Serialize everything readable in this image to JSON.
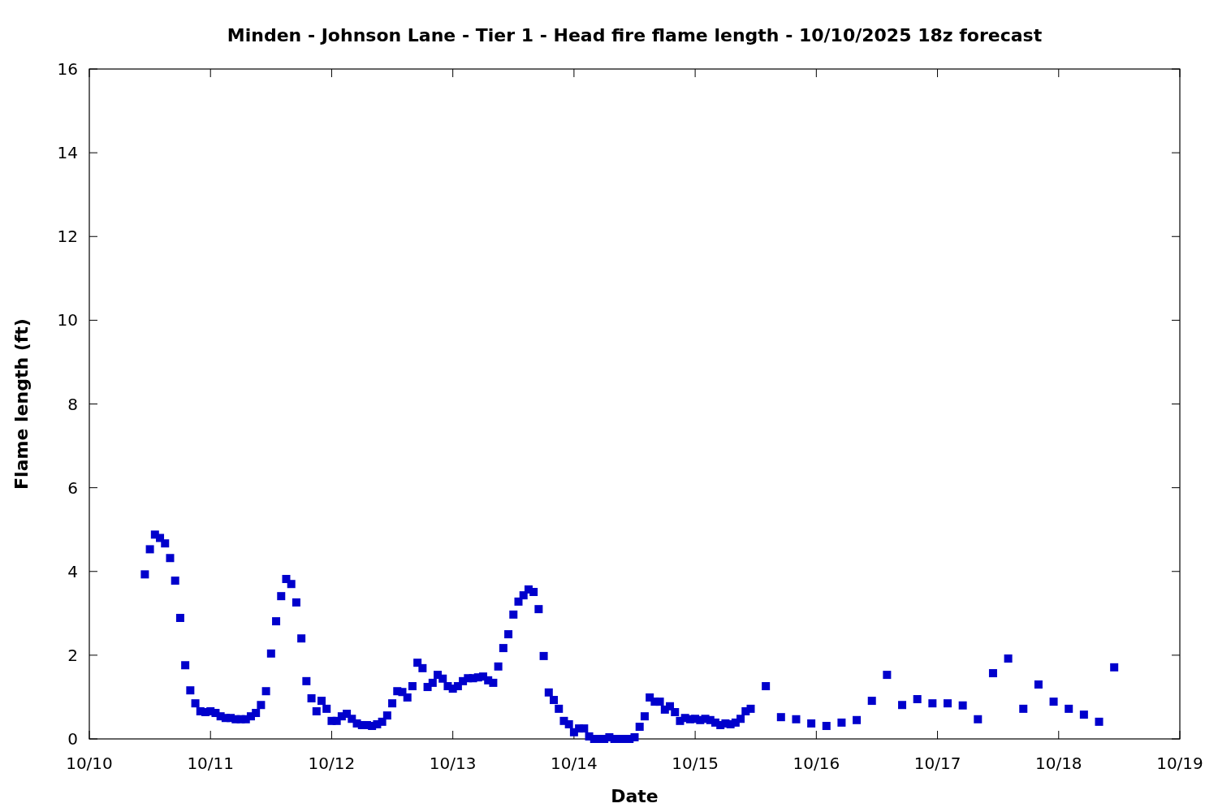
{
  "chart_data": {
    "type": "scatter",
    "title": "Minden - Johnson Lane - Tier 1 - Head fire flame length - 10/10/2025 18z forecast",
    "xlabel": "Date",
    "ylabel": "Flame length (ft)",
    "marker": "square",
    "grid": false,
    "xlim": [
      "2025-10-10",
      "2025-10-19"
    ],
    "xticks": [
      {
        "value": "2025-10-10",
        "label": "10/10"
      },
      {
        "value": "2025-10-11",
        "label": "10/11"
      },
      {
        "value": "2025-10-12",
        "label": "10/12"
      },
      {
        "value": "2025-10-13",
        "label": "10/13"
      },
      {
        "value": "2025-10-14",
        "label": "10/14"
      },
      {
        "value": "2025-10-15",
        "label": "10/15"
      },
      {
        "value": "2025-10-16",
        "label": "10/16"
      },
      {
        "value": "2025-10-17",
        "label": "10/17"
      },
      {
        "value": "2025-10-18",
        "label": "10/18"
      },
      {
        "value": "2025-10-19",
        "label": "10/19"
      }
    ],
    "ylim": [
      0,
      16
    ],
    "yticks": [
      0,
      2,
      4,
      6,
      8,
      10,
      12,
      14,
      16
    ],
    "series": [
      {
        "color": "#0000cc",
        "x": [
          "2025-10-10T11:00",
          "2025-10-10T12:00",
          "2025-10-10T13:00",
          "2025-10-10T14:00",
          "2025-10-10T15:00",
          "2025-10-10T16:00",
          "2025-10-10T17:00",
          "2025-10-10T18:00",
          "2025-10-10T19:00",
          "2025-10-10T20:00",
          "2025-10-10T21:00",
          "2025-10-10T22:00",
          "2025-10-10T23:00",
          "2025-10-11T00:00",
          "2025-10-11T01:00",
          "2025-10-11T02:00",
          "2025-10-11T03:00",
          "2025-10-11T04:00",
          "2025-10-11T05:00",
          "2025-10-11T06:00",
          "2025-10-11T07:00",
          "2025-10-11T08:00",
          "2025-10-11T09:00",
          "2025-10-11T10:00",
          "2025-10-11T11:00",
          "2025-10-11T12:00",
          "2025-10-11T13:00",
          "2025-10-11T14:00",
          "2025-10-11T15:00",
          "2025-10-11T16:00",
          "2025-10-11T17:00",
          "2025-10-11T18:00",
          "2025-10-11T19:00",
          "2025-10-11T20:00",
          "2025-10-11T21:00",
          "2025-10-11T22:00",
          "2025-10-11T23:00",
          "2025-10-12T00:00",
          "2025-10-12T01:00",
          "2025-10-12T02:00",
          "2025-10-12T03:00",
          "2025-10-12T04:00",
          "2025-10-12T05:00",
          "2025-10-12T06:00",
          "2025-10-12T07:00",
          "2025-10-12T08:00",
          "2025-10-12T09:00",
          "2025-10-12T10:00",
          "2025-10-12T11:00",
          "2025-10-12T12:00",
          "2025-10-12T13:00",
          "2025-10-12T14:00",
          "2025-10-12T15:00",
          "2025-10-12T16:00",
          "2025-10-12T17:00",
          "2025-10-12T18:00",
          "2025-10-12T19:00",
          "2025-10-12T20:00",
          "2025-10-12T21:00",
          "2025-10-12T22:00",
          "2025-10-12T23:00",
          "2025-10-13T00:00",
          "2025-10-13T01:00",
          "2025-10-13T02:00",
          "2025-10-13T03:00",
          "2025-10-13T04:00",
          "2025-10-13T05:00",
          "2025-10-13T06:00",
          "2025-10-13T07:00",
          "2025-10-13T08:00",
          "2025-10-13T09:00",
          "2025-10-13T10:00",
          "2025-10-13T11:00",
          "2025-10-13T12:00",
          "2025-10-13T13:00",
          "2025-10-13T14:00",
          "2025-10-13T15:00",
          "2025-10-13T16:00",
          "2025-10-13T17:00",
          "2025-10-13T18:00",
          "2025-10-13T19:00",
          "2025-10-13T20:00",
          "2025-10-13T21:00",
          "2025-10-13T22:00",
          "2025-10-13T23:00",
          "2025-10-14T00:00",
          "2025-10-14T01:00",
          "2025-10-14T02:00",
          "2025-10-14T03:00",
          "2025-10-14T04:00",
          "2025-10-14T05:00",
          "2025-10-14T06:00",
          "2025-10-14T07:00",
          "2025-10-14T08:00",
          "2025-10-14T09:00",
          "2025-10-14T10:00",
          "2025-10-14T11:00",
          "2025-10-14T12:00",
          "2025-10-14T13:00",
          "2025-10-14T14:00",
          "2025-10-14T15:00",
          "2025-10-14T16:00",
          "2025-10-14T17:00",
          "2025-10-14T18:00",
          "2025-10-14T19:00",
          "2025-10-14T20:00",
          "2025-10-14T21:00",
          "2025-10-14T22:00",
          "2025-10-14T23:00",
          "2025-10-15T00:00",
          "2025-10-15T01:00",
          "2025-10-15T02:00",
          "2025-10-15T03:00",
          "2025-10-15T04:00",
          "2025-10-15T05:00",
          "2025-10-15T06:00",
          "2025-10-15T07:00",
          "2025-10-15T08:00",
          "2025-10-15T09:00",
          "2025-10-15T10:00",
          "2025-10-15T11:00",
          "2025-10-15T14:00",
          "2025-10-15T17:00",
          "2025-10-15T20:00",
          "2025-10-15T23:00",
          "2025-10-16T02:00",
          "2025-10-16T05:00",
          "2025-10-16T08:00",
          "2025-10-16T11:00",
          "2025-10-16T14:00",
          "2025-10-16T17:00",
          "2025-10-16T20:00",
          "2025-10-16T23:00",
          "2025-10-17T02:00",
          "2025-10-17T05:00",
          "2025-10-17T08:00",
          "2025-10-17T11:00",
          "2025-10-17T14:00",
          "2025-10-17T17:00",
          "2025-10-17T20:00",
          "2025-10-17T23:00",
          "2025-10-18T02:00",
          "2025-10-18T05:00",
          "2025-10-18T08:00",
          "2025-10-18T11:00"
        ],
        "values": [
          3.93,
          4.53,
          4.88,
          4.8,
          4.67,
          4.32,
          3.78,
          2.89,
          1.76,
          1.16,
          0.85,
          0.66,
          0.64,
          0.66,
          0.62,
          0.54,
          0.5,
          0.5,
          0.47,
          0.47,
          0.47,
          0.54,
          0.62,
          0.81,
          1.14,
          2.04,
          2.81,
          3.41,
          3.82,
          3.7,
          3.26,
          2.4,
          1.38,
          0.97,
          0.66,
          0.91,
          0.72,
          0.43,
          0.43,
          0.54,
          0.6,
          0.48,
          0.37,
          0.33,
          0.33,
          0.31,
          0.35,
          0.41,
          0.56,
          0.85,
          1.14,
          1.12,
          0.99,
          1.26,
          1.82,
          1.69,
          1.24,
          1.34,
          1.53,
          1.44,
          1.26,
          1.2,
          1.26,
          1.38,
          1.45,
          1.45,
          1.47,
          1.49,
          1.4,
          1.34,
          1.73,
          2.17,
          2.5,
          2.97,
          3.28,
          3.43,
          3.57,
          3.51,
          3.1,
          1.98,
          1.11,
          0.93,
          0.72,
          0.43,
          0.35,
          0.16,
          0.25,
          0.25,
          0.06,
          0,
          0,
          0,
          0.04,
          0,
          0,
          0,
          0,
          0.04,
          0.29,
          0.54,
          0.99,
          0.89,
          0.89,
          0.7,
          0.78,
          0.64,
          0.43,
          0.5,
          0.47,
          0.48,
          0.45,
          0.48,
          0.45,
          0.39,
          0.33,
          0.37,
          0.35,
          0.39,
          0.48,
          0.66,
          0.72,
          1.26,
          0.52,
          0.47,
          0.37,
          0.31,
          0.39,
          0.45,
          0.91,
          1.53,
          0.81,
          0.95,
          0.85,
          0.85,
          0.8,
          0.47,
          1.57,
          1.92,
          0.72,
          1.3,
          0.89,
          0.72,
          0.58,
          0.41,
          1.71
        ]
      }
    ]
  }
}
